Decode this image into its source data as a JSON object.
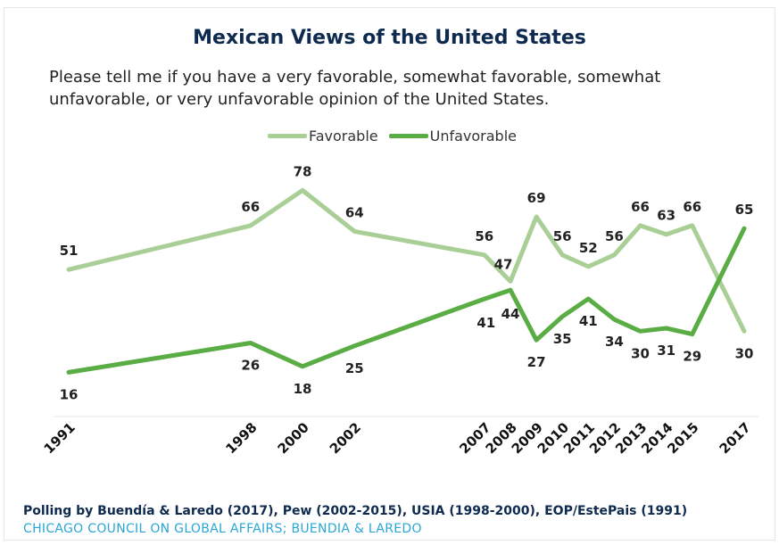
{
  "chart_data": {
    "type": "line",
    "title": "Mexican Views of the United States",
    "subtitle": "Please tell me if you have a very favorable, somewhat favorable, somewhat unfavorable, or very unfavorable opinion of the United States.",
    "x": [
      "1991",
      "1998",
      "2000",
      "2002",
      "2007",
      "2008",
      "2009",
      "2010",
      "2011",
      "2012",
      "2013",
      "2014",
      "2015",
      "2017"
    ],
    "series": [
      {
        "name": "Favorable",
        "color": "#a9cf96",
        "values": [
          51,
          66,
          78,
          64,
          56,
          47,
          69,
          56,
          52,
          56,
          66,
          63,
          66,
          30
        ]
      },
      {
        "name": "Unfavorable",
        "color": "#5aac44",
        "values": [
          16,
          26,
          18,
          25,
          41,
          44,
          27,
          35,
          41,
          34,
          30,
          31,
          29,
          65
        ]
      }
    ],
    "legend": "top-center",
    "grid": false,
    "footnote": "Polling by Buendía & Laredo (2017), Pew (2002-2015), USIA (1998-2000), EOP/EstePais (1991)",
    "source": "CHICAGO COUNCIL ON GLOBAL AFFAIRS; BUENDIA & LAREDO"
  }
}
